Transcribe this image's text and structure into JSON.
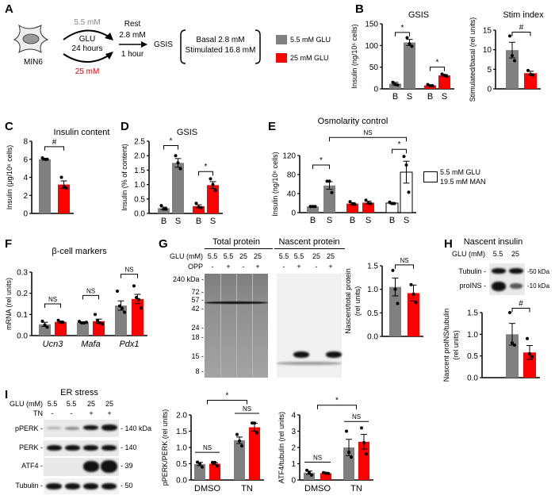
{
  "colors": {
    "gray": "#808080",
    "red": "#ff0000",
    "white": "#ffffff"
  },
  "panel_letters": {
    "A": "A",
    "B": "B",
    "C": "C",
    "D": "D",
    "E": "E",
    "F": "F",
    "G": "G",
    "H": "H",
    "I": "I"
  },
  "panel_a": {
    "cell_label": "MIN6",
    "low_glucose": "5.5 mM",
    "glu": "GLU",
    "duration": "24 hours",
    "high_glucose": "25 mM",
    "rest": "Rest",
    "rest_conc": "2.8 mM",
    "rest_time": "1 hour",
    "gsis": "GSIS",
    "basal": "Basal 2.8 mM",
    "stimulated": "Stimulated 16.8 mM",
    "legend": [
      {
        "label": "5.5 mM GLU",
        "color": "#808080"
      },
      {
        "label": "25 mM GLU",
        "color": "#ff0000"
      }
    ]
  },
  "panel_e_legend": {
    "line1": "5.5 mM GLU",
    "line2": "19.5 mM MAN"
  },
  "panel_g": {
    "total_header": "Total protein",
    "nascent_header": "Nascent protein",
    "glu_label": "GLU (mM)",
    "opp_label": "OPP",
    "glu_lanes": [
      "5.5",
      "5.5",
      "25",
      "25"
    ],
    "opp_lanes": [
      "-",
      "+",
      "-",
      "+"
    ],
    "markers": [
      "240 kDa -",
      "72 -",
      "57 -",
      "42 -",
      "24 -",
      "18 -",
      "15 -",
      "8 -"
    ]
  },
  "panel_h": {
    "title": "Nascent insulin",
    "glu_label": "GLU (mM)",
    "glu_lanes": [
      "5.5",
      "25"
    ],
    "rows": [
      {
        "label": "Tubulin -",
        "kda": "-50 kDa"
      },
      {
        "label": "proINS -",
        "kda": "-10 kDa"
      }
    ]
  },
  "panel_i": {
    "title": "ER stress",
    "glu_label": "GLU (mM)",
    "tn_label": "TN",
    "glu_lanes": [
      "5.5",
      "5.5",
      "25",
      "25"
    ],
    "tn_lanes": [
      "-",
      "-",
      "+",
      "+"
    ],
    "rows": [
      {
        "label": "pPERK -",
        "kda": "- 140 kDa"
      },
      {
        "label": "PERK -",
        "kda": "- 140"
      },
      {
        "label": "ATF4 -",
        "kda": "- 39"
      },
      {
        "label": "Tubulin -",
        "kda": "- 50"
      }
    ]
  },
  "chart_data": [
    {
      "id": "B_gsis",
      "type": "bar",
      "title": "GSIS",
      "ylabel": [
        "Insulin (ng/10⁶ cells)"
      ],
      "ylim": [
        0,
        150
      ],
      "yticks": [
        0,
        50,
        100,
        150
      ],
      "ytick_labels": [
        "0",
        "50",
        "100",
        "150"
      ],
      "xlabels": [
        "B",
        "S",
        "B",
        "S"
      ],
      "categories": [],
      "bars": [
        {
          "group": "gray",
          "value": 12,
          "sem": 3,
          "points": [
            15,
            10,
            9
          ]
        },
        {
          "group": "gray",
          "value": 107,
          "sem": 7,
          "points": [
            118,
            104,
            98
          ]
        },
        {
          "group": "red",
          "value": 8,
          "sem": 1.5,
          "points": [
            10,
            7,
            7
          ]
        },
        {
          "group": "red",
          "value": 31,
          "sem": 2,
          "points": [
            34,
            31,
            29
          ]
        }
      ],
      "brackets": [
        {
          "from": 0,
          "to": 1,
          "y": 130,
          "label": "*"
        },
        {
          "from": 2,
          "to": 3,
          "y": 50,
          "label": "*"
        }
      ]
    },
    {
      "id": "B_stim",
      "type": "bar",
      "title": "Stim index",
      "ylabel": [
        "Stimulated/basal (rel units)"
      ],
      "ylim": [
        0,
        15
      ],
      "yticks": [
        0,
        5,
        10,
        15
      ],
      "ytick_labels": [
        "0",
        "5",
        "10",
        "15"
      ],
      "xlabels": [],
      "categories": [],
      "bars": [
        {
          "group": "gray",
          "value": 9.9,
          "sem": 2,
          "points": [
            13.5,
            8.5,
            7.2
          ]
        },
        {
          "group": "red",
          "value": 4.0,
          "sem": 0.5,
          "points": [
            4.7,
            3.7,
            3.5
          ]
        }
      ],
      "brackets": [
        {
          "from": 0,
          "to": 1,
          "y": 14.5,
          "label": "#"
        }
      ]
    },
    {
      "id": "C",
      "type": "bar",
      "title": "Insulin content",
      "ylabel": [
        "Insulin (μg/10⁶ cells)"
      ],
      "ylim": [
        0,
        8
      ],
      "yticks": [
        0,
        2,
        4,
        6,
        8
      ],
      "ytick_labels": [
        "0",
        "2",
        "4",
        "6",
        "8"
      ],
      "xlabels": [],
      "categories": [],
      "bars": [
        {
          "group": "gray",
          "value": 6.0,
          "sem": 0.1,
          "points": [
            6.15,
            6.0,
            6.0
          ]
        },
        {
          "group": "red",
          "value": 3.2,
          "sem": 0.4,
          "points": [
            4.0,
            3.0,
            2.8
          ]
        }
      ],
      "brackets": [
        {
          "from": 0,
          "to": 1,
          "y": 7.4,
          "label": "#"
        }
      ]
    },
    {
      "id": "D",
      "type": "bar",
      "title": "GSIS",
      "ylabel": [
        "Insulin (% of content)"
      ],
      "ylim": [
        0,
        2.5
      ],
      "yticks": [
        0,
        0.5,
        1,
        1.5,
        2,
        2.5
      ],
      "ytick_labels": [
        "0.0",
        "0.5",
        "1.0",
        "1.5",
        "2.0",
        "2.5"
      ],
      "xlabels": [
        "B",
        "S",
        "B",
        "S"
      ],
      "categories": [],
      "bars": [
        {
          "group": "gray",
          "value": 0.18,
          "sem": 0.04,
          "points": [
            0.27,
            0.15,
            0.15
          ]
        },
        {
          "group": "gray",
          "value": 1.75,
          "sem": 0.15,
          "points": [
            2.0,
            1.75,
            1.55
          ]
        },
        {
          "group": "red",
          "value": 0.25,
          "sem": 0.05,
          "points": [
            0.35,
            0.22,
            0.2
          ]
        },
        {
          "group": "red",
          "value": 0.98,
          "sem": 0.12,
          "points": [
            1.2,
            1.0,
            0.8
          ]
        }
      ],
      "brackets": [
        {
          "from": 0,
          "to": 1,
          "y": 2.35,
          "label": "*"
        },
        {
          "from": 2,
          "to": 3,
          "y": 1.45,
          "label": "*"
        }
      ]
    },
    {
      "id": "E",
      "type": "bar",
      "title": "Osmolarity control",
      "ylabel": [
        "Insulin (ng/10⁶ cells)"
      ],
      "ylim": [
        0,
        120
      ],
      "yticks": [
        0,
        40,
        80,
        120
      ],
      "ytick_labels": [
        "0",
        "40",
        "80",
        "120"
      ],
      "xlabels": [
        "B",
        "S",
        "B",
        "S",
        "B",
        "S"
      ],
      "categories": [],
      "bars": [
        {
          "group": "gray",
          "value": 13,
          "sem": 1,
          "points": [
            13,
            13,
            13
          ]
        },
        {
          "group": "gray",
          "value": 57,
          "sem": 8,
          "points": [
            66,
            66,
            42
          ]
        },
        {
          "group": "red",
          "value": 19,
          "sem": 2,
          "points": [
            23,
            18,
            17
          ]
        },
        {
          "group": "red",
          "value": 21,
          "sem": 3,
          "points": [
            26,
            20,
            19
          ]
        },
        {
          "group": "white",
          "value": 20,
          "sem": 1.5,
          "points": [
            22,
            19,
            19
          ]
        },
        {
          "group": "white",
          "value": 85,
          "sem": 23,
          "points": [
            118,
            100,
            43
          ]
        }
      ],
      "brackets": [
        {
          "from": 0,
          "to": 1,
          "y": 100,
          "label": "*"
        },
        {
          "from": 4,
          "to": 5,
          "y": 133,
          "label": "*"
        },
        {
          "from": 1,
          "to": 5,
          "y": 158,
          "label": "NS"
        }
      ]
    },
    {
      "id": "F",
      "type": "bar",
      "title": "β-cell markers",
      "ylabel": [
        "mRNA (rel units)"
      ],
      "ylim": [
        0,
        0.3
      ],
      "yticks": [
        0,
        0.1,
        0.2,
        0.3
      ],
      "ytick_labels": [
        "0.0",
        "0.1",
        "0.2",
        "0.3"
      ],
      "xlabels": [],
      "categories": [
        "Ucn3",
        "Mafa",
        "Pdx1"
      ],
      "bars": [
        {
          "group": "gray",
          "value": 0.053,
          "sem": 0.01,
          "points": [
            0.068,
            0.05,
            0.04
          ]
        },
        {
          "group": "red",
          "value": 0.065,
          "sem": 0.004,
          "points": [
            0.072,
            0.063,
            0.062
          ]
        },
        {
          "group": "gray",
          "value": 0.062,
          "sem": 0.003,
          "points": [
            0.067,
            0.06,
            0.06,
            0.063
          ]
        },
        {
          "group": "red",
          "value": 0.068,
          "sem": 0.01,
          "points": [
            0.1,
            0.07,
            0.06,
            0.055
          ]
        },
        {
          "group": "gray",
          "value": 0.142,
          "sem": 0.022,
          "points": [
            0.21,
            0.14,
            0.13,
            0.11
          ]
        },
        {
          "group": "red",
          "value": 0.173,
          "sem": 0.022,
          "points": [
            0.235,
            0.18,
            0.17,
            0.13
          ]
        }
      ],
      "brackets": [
        {
          "from": 0,
          "to": 1,
          "y": 0.15,
          "label": "NS"
        },
        {
          "from": 2,
          "to": 3,
          "y": 0.19,
          "label": "NS"
        },
        {
          "from": 4,
          "to": 5,
          "y": 0.29,
          "label": "NS"
        }
      ]
    },
    {
      "id": "G",
      "type": "bar",
      "title": "",
      "ylabel": [
        "Nascent/total protein",
        "(rel units)"
      ],
      "ylim": [
        0,
        1.5
      ],
      "yticks": [
        0,
        0.5,
        1,
        1.5
      ],
      "ytick_labels": [
        "0.0",
        "0.5",
        "1.0",
        "1.5"
      ],
      "xlabels": [],
      "categories": [],
      "bars": [
        {
          "group": "gray",
          "value": 1.05,
          "sem": 0.19,
          "points": [
            1.4,
            1.0,
            0.7
          ]
        },
        {
          "group": "red",
          "value": 0.92,
          "sem": 0.17,
          "points": [
            1.1,
            0.9,
            0.72
          ]
        }
      ],
      "brackets": [
        {
          "from": 0,
          "to": 1,
          "y": 1.52,
          "label": "NS"
        }
      ]
    },
    {
      "id": "H",
      "type": "bar",
      "title": "",
      "ylabel": [
        "Nascent proINS/tubulin",
        "(rel units)"
      ],
      "ylim": [
        0,
        1.5
      ],
      "yticks": [
        0,
        0.5,
        1,
        1.5
      ],
      "ytick_labels": [
        "0.0",
        "0.5",
        "1.0",
        "1.5"
      ],
      "xlabels": [],
      "categories": [],
      "bars": [
        {
          "group": "gray",
          "value": 1.0,
          "sem": 0.25,
          "points": [
            1.5,
            0.8,
            0.75
          ]
        },
        {
          "group": "red",
          "value": 0.58,
          "sem": 0.16,
          "points": [
            0.9,
            0.55,
            0.48
          ]
        }
      ],
      "brackets": [
        {
          "from": 0,
          "to": 1,
          "y": 1.6,
          "label": "#"
        }
      ]
    },
    {
      "id": "I_perk",
      "type": "bar",
      "title": "",
      "ylabel": [
        "pPERK/PERK (rel units)"
      ],
      "ylim": [
        0,
        2
      ],
      "yticks": [
        0,
        0.5,
        1,
        1.5,
        2
      ],
      "ytick_labels": [
        "0.0",
        "0.5",
        "1.0",
        "1.5",
        "2.0"
      ],
      "xlabels": [],
      "categories": [
        "DMSO",
        "TN"
      ],
      "bars": [
        {
          "group": "gray",
          "value": 0.49,
          "sem": 0.05,
          "points": [
            0.55,
            0.5,
            0.4
          ]
        },
        {
          "group": "red",
          "value": 0.5,
          "sem": 0.03,
          "points": [
            0.54,
            0.54,
            0.43
          ]
        },
        {
          "group": "gray",
          "value": 1.22,
          "sem": 0.1,
          "points": [
            1.4,
            1.2,
            1.05
          ]
        },
        {
          "group": "red",
          "value": 1.62,
          "sem": 0.12,
          "points": [
            1.75,
            1.75,
            1.45
          ]
        }
      ],
      "brackets": [
        {
          "from": 0,
          "to": 1,
          "y": 0.85,
          "label": "NS",
          "flat": true
        },
        {
          "from": 2,
          "to": 3,
          "y": 2.05,
          "label": "NS",
          "flat": true
        },
        {
          "from": 0.5,
          "to": 2.5,
          "y": 2.45,
          "label": "*"
        }
      ]
    },
    {
      "id": "I_atf4",
      "type": "bar",
      "title": "",
      "ylabel": [
        "ATF4/tubulin (rel units)"
      ],
      "ylim": [
        0,
        4
      ],
      "yticks": [
        0,
        1,
        2,
        3,
        4
      ],
      "ytick_labels": [
        "0",
        "1",
        "2",
        "3",
        "4"
      ],
      "xlabels": [],
      "categories": [
        "DMSO",
        "TN"
      ],
      "bars": [
        {
          "group": "gray",
          "value": 0.45,
          "sem": 0.1,
          "points": [
            0.6,
            0.45,
            0.3
          ]
        },
        {
          "group": "red",
          "value": 0.42,
          "sem": 0.03,
          "points": [
            0.45,
            0.42,
            0.4
          ]
        },
        {
          "group": "gray",
          "value": 2.0,
          "sem": 0.5,
          "points": [
            3.0,
            1.7,
            1.4
          ]
        },
        {
          "group": "red",
          "value": 2.35,
          "sem": 0.45,
          "points": [
            3.2,
            2.3,
            1.6
          ]
        }
      ],
      "brackets": [
        {
          "from": 0,
          "to": 1,
          "y": 1.1,
          "label": "NS",
          "flat": true
        },
        {
          "from": 2,
          "to": 3,
          "y": 3.6,
          "label": "NS",
          "flat": true
        },
        {
          "from": 0.5,
          "to": 2.5,
          "y": 4.6,
          "label": "*"
        }
      ]
    }
  ]
}
